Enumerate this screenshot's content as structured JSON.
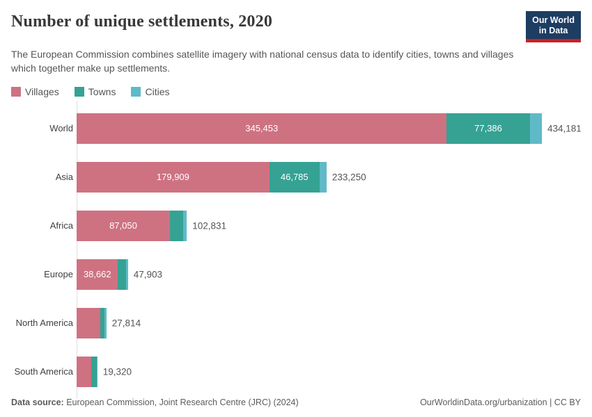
{
  "header": {
    "title": "Number of unique settlements, 2020",
    "subtitle": "The European Commission combines satellite imagery with national census data to identify cities, towns and villages which together make up settlements.",
    "logo": {
      "line1": "Our World",
      "line2": "in Data"
    }
  },
  "legend": {
    "items": [
      {
        "label": "Villages",
        "color": "#ce7282"
      },
      {
        "label": "Towns",
        "color": "#35a294"
      },
      {
        "label": "Cities",
        "color": "#5fbac7"
      }
    ]
  },
  "chart_data": {
    "type": "bar",
    "orientation": "horizontal-stacked",
    "title": "Number of unique settlements, 2020",
    "categories": [
      "World",
      "Asia",
      "Africa",
      "Europe",
      "North America",
      "South America"
    ],
    "series": [
      {
        "name": "Villages",
        "color": "#ce7282",
        "values": [
          345453,
          179909,
          87050,
          38662,
          22300,
          13650
        ]
      },
      {
        "name": "Towns",
        "color": "#35a294",
        "values": [
          77386,
          46785,
          12390,
          7542,
          3750,
          5400
        ]
      },
      {
        "name": "Cities",
        "color": "#5fbac7",
        "values": [
          11342,
          6556,
          3391,
          1699,
          1764,
          270
        ]
      }
    ],
    "totals": [
      434181,
      233250,
      102831,
      47903,
      27814,
      19320
    ],
    "total_labels": [
      "434,181",
      "233,250",
      "102,831",
      "47,903",
      "27,814",
      "19,320"
    ],
    "segment_labels": [
      [
        "345,453",
        "77,386",
        ""
      ],
      [
        "179,909",
        "46,785",
        ""
      ],
      [
        "87,050",
        "",
        ""
      ],
      [
        "38,662",
        "",
        ""
      ],
      [
        "",
        "",
        ""
      ],
      [
        "",
        "",
        ""
      ]
    ],
    "xlim": [
      0,
      434181
    ],
    "legend_position": "top",
    "grid": false
  },
  "footer": {
    "datasource_label": "Data source:",
    "datasource_value": " European Commission, Joint Research Centre (JRC) (2024)",
    "link": "OurWorldinData.org/urbanization",
    "separator": " | ",
    "license": "CC BY"
  }
}
